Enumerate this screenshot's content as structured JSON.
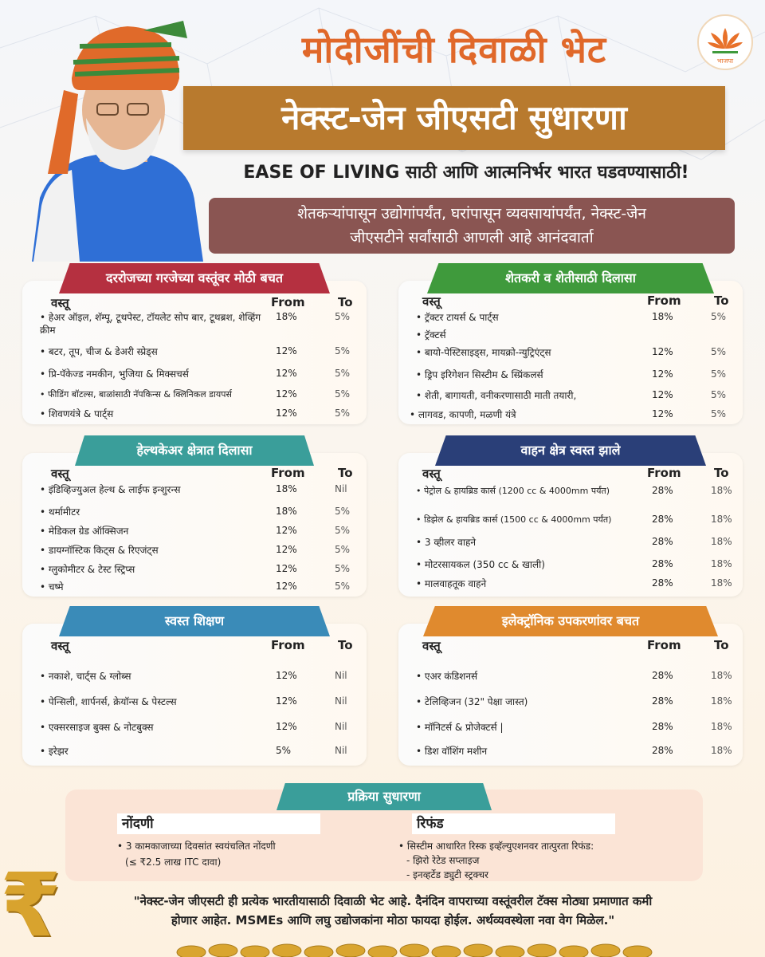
{
  "header": {
    "title": "मोदीजींची दिवाळी भेट",
    "banner": "नेक्स्ट-जेन जीएसटी सुधारणा",
    "tagline": "EASE OF LIVING साठी आणि आत्मनिर्भर भारत घडवण्यासाठी!",
    "subtitle_line1": "शेतकऱ्यांपासून उद्योगांपर्यंत, घरांपासून व्यवसायांपर्यंत, नेक्स्ट-जेन",
    "subtitle_line2": "जीएसटीने  सर्वांसाठी आणली आहे आनंदवार्ता",
    "logo_text": "भाजपा"
  },
  "colors": {
    "orange": "#e0682a",
    "brown": "#b87a2e",
    "maroon": "#8a5552",
    "red_ribbon": "#b53040",
    "green_ribbon": "#3f9a3c",
    "teal_ribbon": "#3a9e9a",
    "navy_ribbon": "#2a3f78",
    "blue_ribbon": "#3a8bb8",
    "amber_ribbon": "#e08a2e"
  },
  "columns": {
    "item": "वस्तू",
    "from": "From",
    "to": "To"
  },
  "panels": {
    "daily": {
      "title": "दररोजच्या गरजेच्या वस्तूंवर मोठी बचत",
      "rows": [
        {
          "item": "हेअर ऑइल, शॅम्पू, टूथपेस्ट, टॉयलेट सोप बार, टूथब्रश, शेव्हिंग क्रीम",
          "from": "18%",
          "to": "5%"
        },
        {
          "item": "बटर, तूप, चीज & डेअरी स्प्रेड्स",
          "from": "12%",
          "to": "5%"
        },
        {
          "item": "प्रि-पॅकेज्ड नमकीन, भुजिया & मिक्सचर्स",
          "from": "12%",
          "to": "5%"
        },
        {
          "item": "फीडिंग बॉटल्स, बाळांसाठी नॅपकिन्स & क्लिनिकल डायपर्स",
          "from": "12%",
          "to": "5%"
        },
        {
          "item": "शिवणयंत्रे & पार्ट्स",
          "from": "12%",
          "to": "5%"
        }
      ]
    },
    "farm": {
      "title": "शेतकरी व शेतीसाठी दिलासा",
      "rows": [
        {
          "item": "ट्रॅक्टर टायर्स & पार्ट्स",
          "from": "18%",
          "to": "5%"
        },
        {
          "item": "ट्रॅक्टर्स",
          "from": "",
          "to": ""
        },
        {
          "item": "बायो-पेस्टिसाइड्स, मायक्रो-न्युट्रिएंट्स",
          "from": "12%",
          "to": "5%"
        },
        {
          "item": "ड्रिप इरिगेशन सिस्टीम & स्प्रिंकलर्स",
          "from": "12%",
          "to": "5%"
        },
        {
          "item": "शेती, बागायती, वनीकरणासाठी माती तयारी,",
          "from": "12%",
          "to": "5%"
        },
        {
          "item": "लागवड, कापणी, मळणी यंत्रे",
          "from": "12%",
          "to": "5%"
        }
      ]
    },
    "health": {
      "title": "हेल्थकेअर क्षेत्रात दिलासा",
      "rows": [
        {
          "item": "इंडिव्हिज्युअल हेल्थ & लाईफ इन्शुरन्स",
          "from": "18%",
          "to": "Nil"
        },
        {
          "item": "थर्मामीटर",
          "from": "18%",
          "to": "5%"
        },
        {
          "item": "मेडिकल ग्रेड ऑक्सिजन",
          "from": "12%",
          "to": "5%"
        },
        {
          "item": "डायग्नॉस्टिक किट्स & रिएजंट्स",
          "from": "12%",
          "to": "5%"
        },
        {
          "item": "ग्लुकोमीटर & टेस्ट स्ट्रिप्स",
          "from": "12%",
          "to": "5%"
        },
        {
          "item": "चष्मे",
          "from": "12%",
          "to": "5%"
        }
      ]
    },
    "vehicle": {
      "title": "वाहन क्षेत्र स्वस्त झाले",
      "rows": [
        {
          "item": "पेट्रोल & हायब्रिड कार्स (1200 cc & 4000mm पर्यंत)",
          "from": "28%",
          "to": "18%"
        },
        {
          "item": "डिझेल & हायब्रिड कार्स (1500 cc & 4000mm पर्यंत)",
          "from": "28%",
          "to": "18%"
        },
        {
          "item": "3 व्हीलर वाहने",
          "from": "28%",
          "to": "18%"
        },
        {
          "item": "मोटरसायकल (350 cc & खाली)",
          "from": "28%",
          "to": "18%"
        },
        {
          "item": "मालवाहतूक वाहने",
          "from": "28%",
          "to": "18%"
        }
      ]
    },
    "education": {
      "title": "स्वस्त शिक्षण",
      "rows": [
        {
          "item": "नकाशे, चार्ट्स & ग्लोब्स",
          "from": "12%",
          "to": "Nil"
        },
        {
          "item": "पेन्सिली, शार्पनर्स, क्रेयॉन्स & पेस्टल्स",
          "from": "12%",
          "to": "Nil"
        },
        {
          "item": "एक्सरसाइज बुक्स & नोटबुक्स",
          "from": "12%",
          "to": "Nil"
        },
        {
          "item": "इरेझर",
          "from": "5%",
          "to": "Nil"
        }
      ]
    },
    "electronics": {
      "title": "इलेक्ट्रॉनिक उपकरणांवर बचत",
      "rows": [
        {
          "item": "एअर कंडिशनर्स",
          "from": "28%",
          "to": "18%"
        },
        {
          "item": "टेलिव्हिजन (32\" पेक्षा जास्त)",
          "from": "28%",
          "to": "18%"
        },
        {
          "item": "मॉनिटर्स & प्रोजेक्टर्स |",
          "from": "28%",
          "to": "18%"
        },
        {
          "item": "डिश वॉशिंग मशीन",
          "from": "28%",
          "to": "18%"
        }
      ]
    }
  },
  "process": {
    "title": "प्रक्रिया सुधारणा",
    "registration_head": "नोंदणी",
    "registration_line1": "• 3 कामकाजाच्या दिवसांत स्वयंचलित नोंदणी",
    "registration_line2": "(≤ ₹2.5 लाख ITC दावा)",
    "refund_head": "रिफंड",
    "refund_line1": "• सिस्टीम आधारित रिस्क इव्हॅल्युएशनवर तात्पुरता रिफंड:",
    "refund_line2": "- झिरो रेटेड सप्लाइज",
    "refund_line3": "- इनव्हर्टेड ड्युटी स्ट्रक्चर"
  },
  "footer": {
    "rupee": "₹",
    "quote_line1": "\"नेक्स्ट-जेन जीएसटी ही प्रत्येक भारतीयासाठी दिवाळी भेट आहे. दैनंदिन वापराच्या वस्तूंवरील टॅक्स मोठ्या प्रमाणात कमी",
    "quote_line2": "होणार आहेत. MSMEs आणि लघु उद्योजकांना मोठा फायदा होईल. अर्थव्यवस्थेला नवा वेग मिळेल.\""
  }
}
